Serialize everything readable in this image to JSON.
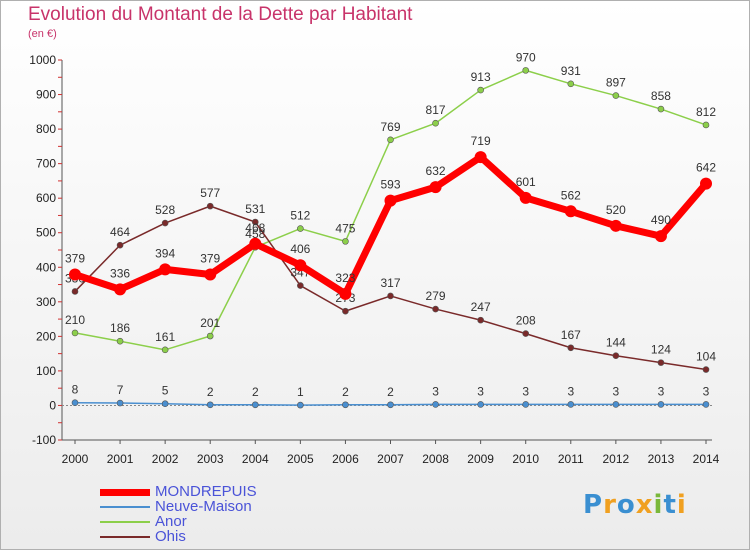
{
  "header": {
    "title": "Evolution du Montant de la Dette par Habitant",
    "unit": "(en €)"
  },
  "branding": {
    "logo_letters": [
      "P",
      "r",
      "o",
      "x",
      "i",
      "t",
      "i"
    ],
    "logo_colors": [
      "#3a8fd1",
      "#f0a020",
      "#3a8fd1",
      "#f0a020",
      "#7ab83a",
      "#3a8fd1",
      "#f0a020"
    ]
  },
  "chart_data": {
    "type": "line",
    "title": "Evolution du Montant de la Dette par Habitant",
    "ylabel": "(en €)",
    "xlabel": "",
    "x": [
      "2000",
      "2001",
      "2002",
      "2003",
      "2004",
      "2005",
      "2006",
      "2007",
      "2008",
      "2009",
      "2010",
      "2011",
      "2012",
      "2013",
      "2014"
    ],
    "ylim": [
      -100,
      1000
    ],
    "yticks": [
      -100,
      0,
      100,
      200,
      300,
      400,
      500,
      600,
      700,
      800,
      900,
      1000
    ],
    "grid": false,
    "legend_position": "bottom-left",
    "series": [
      {
        "name": "MONDREPUIS",
        "color": "#ff0000",
        "values": [
          379,
          336,
          394,
          379,
          468,
          406,
          323,
          593,
          632,
          719,
          601,
          562,
          520,
          490,
          642
        ]
      },
      {
        "name": "Neuve-Maison",
        "color": "#4a8fd0",
        "values": [
          8,
          7,
          5,
          2,
          2,
          1,
          2,
          2,
          3,
          3,
          3,
          3,
          3,
          3,
          3
        ]
      },
      {
        "name": "Anor",
        "color": "#8ccf4a",
        "values": [
          210,
          186,
          161,
          201,
          458,
          512,
          475,
          769,
          817,
          913,
          970,
          931,
          897,
          858,
          812
        ]
      },
      {
        "name": "Ohis",
        "color": "#7a2a2a",
        "values": [
          330,
          464,
          528,
          577,
          531,
          347,
          273,
          317,
          279,
          247,
          208,
          167,
          144,
          124,
          104
        ]
      }
    ]
  }
}
